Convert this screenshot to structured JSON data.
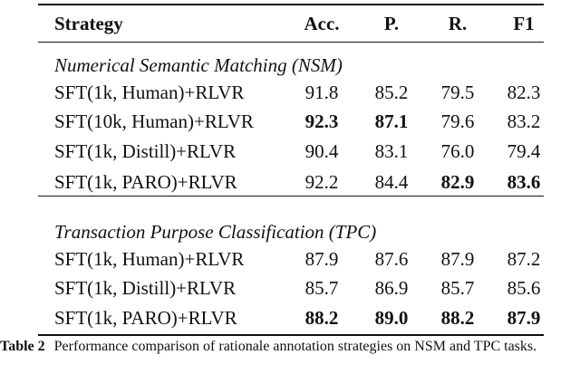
{
  "table": {
    "header": [
      "Strategy",
      "Acc.",
      "P.",
      "R.",
      "F1"
    ],
    "sections": [
      {
        "title": "Numerical Semantic Matching (NSM)",
        "rows": [
          [
            "SFT(1k, Human)+RLVR",
            "91.8",
            "85.2",
            "79.5",
            "82.3"
          ],
          [
            "SFT(10k, Human)+RLVR",
            "92.3",
            "87.1",
            "79.6",
            "83.2"
          ],
          [
            "SFT(1k, Distill)+RLVR",
            "90.4",
            "83.1",
            "76.0",
            "79.4"
          ],
          [
            "SFT(1k, PARO)+RLVR",
            "92.2",
            "84.4",
            "82.9",
            "83.6"
          ]
        ],
        "bold": [
          [],
          [
            1,
            2
          ],
          [],
          [
            3,
            4
          ]
        ]
      },
      {
        "title": "Transaction Purpose Classification (TPC)",
        "rows": [
          [
            "SFT(1k, Human)+RLVR",
            "87.9",
            "87.6",
            "87.9",
            "87.2"
          ],
          [
            "SFT(1k, Distill)+RLVR",
            "85.7",
            "86.9",
            "85.7",
            "85.6"
          ],
          [
            "SFT(1k, PARO)+RLVR",
            "88.2",
            "89.0",
            "88.2",
            "87.9"
          ]
        ],
        "bold": [
          [],
          [],
          [
            1,
            2,
            3,
            4
          ]
        ]
      }
    ]
  },
  "caption": {
    "label": "Table 2",
    "text": "Performance comparison of rationale annotation strategies on NSM and TPC tasks."
  }
}
